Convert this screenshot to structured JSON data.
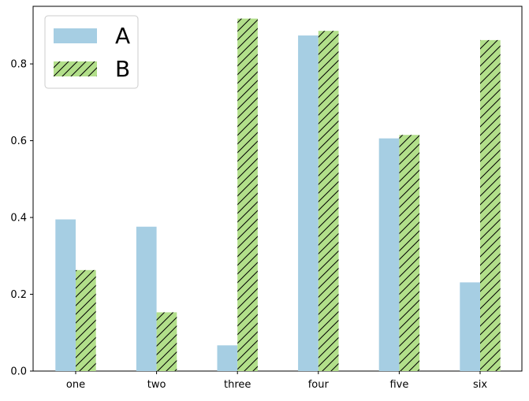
{
  "chart_data": {
    "type": "bar",
    "categories": [
      "one",
      "two",
      "three",
      "four",
      "five",
      "six"
    ],
    "series": [
      {
        "name": "A",
        "values": [
          0.395,
          0.376,
          0.067,
          0.874,
          0.606,
          0.231
        ],
        "color": "#a6cee3",
        "pattern": "solid"
      },
      {
        "name": "B",
        "values": [
          0.263,
          0.153,
          0.918,
          0.886,
          0.615,
          0.862
        ],
        "color": "#b2df8a",
        "pattern": "hatch"
      }
    ],
    "y_ticks": [
      0.0,
      0.2,
      0.4,
      0.6,
      0.8
    ],
    "y_tick_labels": [
      "0.0",
      "0.2",
      "0.4",
      "0.6",
      "0.8"
    ],
    "ylim": [
      0,
      0.95
    ],
    "xlabel": "",
    "ylabel": "",
    "title": "",
    "grid": false,
    "legend_position": "upper-left"
  }
}
